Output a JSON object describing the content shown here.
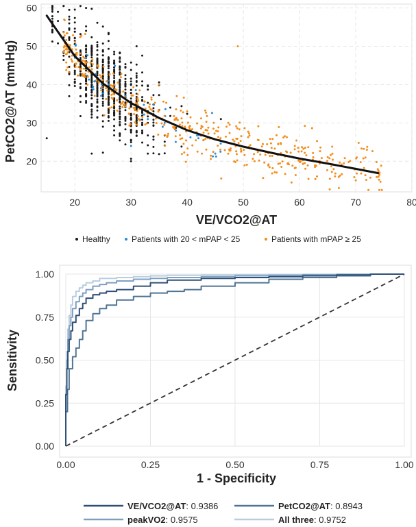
{
  "chart_data": [
    {
      "type": "scatter",
      "title": "",
      "xlabel": "VE/VCO2@AT",
      "ylabel": "PetCO2@AT (mmHg)",
      "xlim": [
        14,
        80
      ],
      "ylim": [
        12,
        61
      ],
      "xticks": [
        20,
        30,
        40,
        50,
        60,
        70,
        80
      ],
      "yticks": [
        20,
        30,
        40,
        50,
        60
      ],
      "grid": true,
      "legend_position": "bottom",
      "series": [
        {
          "name": "Healthy",
          "color": "#1a1a1a",
          "x_range": [
            15,
            46
          ],
          "approx_points": 700,
          "example_points": [
            [
              15,
              26
            ],
            [
              17,
              59
            ],
            [
              19,
              57
            ],
            [
              22,
              60
            ],
            [
              23,
              22
            ],
            [
              30,
              20
            ],
            [
              31,
              50
            ],
            [
              32,
              36
            ],
            [
              37,
              34
            ],
            [
              46,
              31
            ]
          ]
        },
        {
          "name": "Patients with 20 < mPAP < 25",
          "color": "#2b8cd6",
          "x_range": [
            20,
            46
          ],
          "approx_points": 45,
          "example_points": [
            [
              22,
              47
            ],
            [
              26,
              40
            ],
            [
              29,
              37
            ],
            [
              30,
              24
            ],
            [
              33,
              31
            ],
            [
              36,
              30
            ],
            [
              38,
              28
            ],
            [
              42,
              26
            ],
            [
              45,
              22
            ]
          ]
        },
        {
          "name": "Patients with mPAP ≥ 25",
          "color": "#f28e1c",
          "x_range": [
            18,
            75
          ],
          "approx_points": 500,
          "example_points": [
            [
              19,
              49
            ],
            [
              35,
              40
            ],
            [
              40,
              33
            ],
            [
              47,
              29
            ],
            [
              49,
              50
            ],
            [
              52,
              20
            ],
            [
              60,
              20
            ],
            [
              67,
              13
            ],
            [
              72,
              23
            ],
            [
              74,
              17
            ]
          ]
        }
      ],
      "fit_curve": {
        "x": [
          15,
          20,
          25,
          30,
          35,
          40,
          45,
          50,
          55,
          60,
          65,
          70,
          74
        ],
        "y": [
          58,
          47.4,
          40.3,
          35.2,
          31.3,
          28.1,
          25.7,
          23.8,
          22.2,
          20.7,
          19.4,
          18.0,
          16.9
        ]
      },
      "legend": [
        "Healthy",
        "Patients with 20 < mPAP < 25",
        "Patients with mPAP ≥ 25"
      ]
    },
    {
      "type": "line",
      "title": "",
      "xlabel": "1 - Specificity",
      "ylabel": "Sensitivity",
      "xlim": [
        0,
        1
      ],
      "ylim": [
        0,
        1
      ],
      "xticks": [
        "0.00",
        "0.25",
        "0.50",
        "0.75",
        "1.00"
      ],
      "yticks": [
        "0.00",
        "0.25",
        "0.50",
        "0.75",
        "1.00"
      ],
      "grid": true,
      "legend_position": "bottom",
      "diagonal": {
        "x": [
          0,
          1
        ],
        "y": [
          0,
          1
        ],
        "style": "dashed",
        "color": "#333333"
      },
      "series": [
        {
          "name": "VE/VCO2@AT",
          "auc": "0.9386",
          "color": "#2e4f76",
          "x": [
            0,
            0.003,
            0.006,
            0.01,
            0.015,
            0.02,
            0.03,
            0.04,
            0.05,
            0.06,
            0.08,
            0.1,
            0.12,
            0.15,
            0.2,
            0.25,
            0.3,
            0.4,
            0.5,
            0.6,
            0.7,
            0.8,
            0.9,
            1
          ],
          "y": [
            0,
            0.3,
            0.45,
            0.55,
            0.62,
            0.67,
            0.72,
            0.76,
            0.8,
            0.83,
            0.86,
            0.88,
            0.89,
            0.9,
            0.91,
            0.93,
            0.95,
            0.965,
            0.975,
            0.98,
            0.985,
            0.99,
            0.995,
            1
          ]
        },
        {
          "name": "PetCO2@AT",
          "auc": "0.8943",
          "color": "#4f7494",
          "x": [
            0,
            0.005,
            0.01,
            0.02,
            0.03,
            0.04,
            0.05,
            0.06,
            0.08,
            0.1,
            0.12,
            0.15,
            0.2,
            0.25,
            0.3,
            0.35,
            0.4,
            0.5,
            0.6,
            0.7,
            0.8,
            0.9,
            1
          ],
          "y": [
            0,
            0.2,
            0.33,
            0.45,
            0.52,
            0.57,
            0.62,
            0.67,
            0.73,
            0.77,
            0.8,
            0.82,
            0.85,
            0.87,
            0.89,
            0.9,
            0.91,
            0.93,
            0.95,
            0.97,
            0.98,
            0.99,
            1
          ]
        },
        {
          "name": "peakVO2",
          "auc": "0.9575",
          "color": "#7f9fbf",
          "x": [
            0,
            0.003,
            0.006,
            0.01,
            0.015,
            0.02,
            0.03,
            0.04,
            0.05,
            0.06,
            0.08,
            0.1,
            0.12,
            0.15,
            0.2,
            0.25,
            0.3,
            0.4,
            0.5,
            0.6,
            0.7,
            0.8,
            0.9,
            1
          ],
          "y": [
            0,
            0.3,
            0.5,
            0.62,
            0.7,
            0.75,
            0.8,
            0.84,
            0.87,
            0.89,
            0.91,
            0.93,
            0.94,
            0.95,
            0.96,
            0.97,
            0.975,
            0.98,
            0.985,
            0.99,
            0.993,
            0.996,
            0.998,
            1
          ]
        },
        {
          "name": "All three",
          "auc": "0.9752",
          "color": "#b9cde0",
          "x": [
            0,
            0.003,
            0.006,
            0.01,
            0.015,
            0.02,
            0.03,
            0.04,
            0.05,
            0.06,
            0.08,
            0.1,
            0.15,
            0.2,
            0.25,
            0.3,
            0.4,
            0.5,
            0.6,
            0.7,
            0.8,
            0.9,
            1
          ],
          "y": [
            0,
            0.35,
            0.55,
            0.68,
            0.76,
            0.82,
            0.87,
            0.9,
            0.92,
            0.935,
            0.95,
            0.96,
            0.975,
            0.98,
            0.985,
            0.99,
            0.993,
            0.995,
            0.997,
            0.998,
            0.999,
            1,
            1
          ]
        }
      ]
    }
  ]
}
